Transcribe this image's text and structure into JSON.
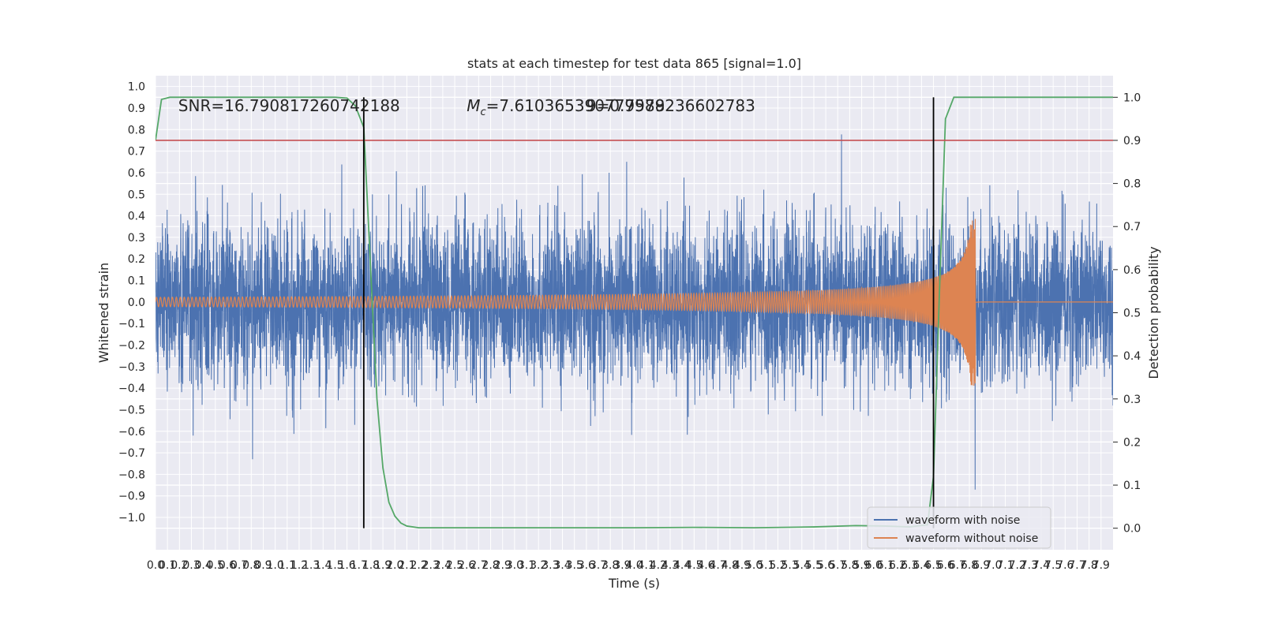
{
  "chart_data": {
    "type": "line",
    "title": "stats at each timestep for test data 865 [signal=1.0]",
    "xlabel": "Time (s)",
    "ylabel": "Whitened strain",
    "ylabel_right": "Detection probability",
    "xlim": [
      0.0,
      8.0
    ],
    "ylim": [
      -1.15,
      1.05
    ],
    "ylim_right": [
      -0.05,
      1.05
    ],
    "x_ticks": [
      "0.0",
      "0.1",
      "0.2",
      "0.3",
      "0.4",
      "0.5",
      "0.6",
      "0.7",
      "0.8",
      "0.9",
      "1.0",
      "1.1",
      "1.2",
      "1.3",
      "1.4",
      "1.5",
      "1.6",
      "1.7",
      "1.8",
      "1.9",
      "2.0",
      "2.1",
      "2.2",
      "2.3",
      "2.4",
      "2.5",
      "2.6",
      "2.7",
      "2.8",
      "2.9",
      "3.0",
      "3.1",
      "3.2",
      "3.3",
      "3.4",
      "3.5",
      "3.6",
      "3.7",
      "3.8",
      "3.9",
      "4.0",
      "4.1",
      "4.2",
      "4.3",
      "4.4",
      "4.5",
      "4.6",
      "4.7",
      "4.8",
      "4.9",
      "5.0",
      "5.1",
      "5.2",
      "5.3",
      "5.4",
      "5.5",
      "5.6",
      "5.7",
      "5.8",
      "5.9",
      "6.0",
      "6.1",
      "6.2",
      "6.3",
      "6.4",
      "6.5",
      "6.6",
      "6.7",
      "6.8",
      "6.9",
      "7.0",
      "7.1",
      "7.2",
      "7.3",
      "7.4",
      "7.5",
      "7.6",
      "7.7",
      "7.8",
      "7.9"
    ],
    "y_ticks": [
      "−1.0",
      "−0.9",
      "−0.8",
      "−0.7",
      "−0.6",
      "−0.5",
      "−0.4",
      "−0.3",
      "−0.2",
      "−0.1",
      "0.0",
      "0.1",
      "0.2",
      "0.3",
      "0.4",
      "0.5",
      "0.6",
      "0.7",
      "0.8",
      "0.9",
      "1.0"
    ],
    "y_ticks_right": [
      "0.0",
      "0.1",
      "0.2",
      "0.3",
      "0.4",
      "0.5",
      "0.6",
      "0.7",
      "0.8",
      "0.9",
      "1.0"
    ],
    "annotations": {
      "snr": "SNR=16.790817260742188",
      "mc_symbol": "M",
      "mc_subscript": "c",
      "mc_value": "=7.610365390777588",
      "overlap": "9=0.9979236602783"
    },
    "threshold": 0.9,
    "vlines_x": [
      1.74,
      6.5
    ],
    "series": [
      {
        "name": "waveform with noise",
        "color": "#4c72b0",
        "kind": "noise",
        "envelope": 0.55,
        "t_end": 8.0
      },
      {
        "name": "waveform without noise",
        "color": "#dd8452",
        "kind": "chirp",
        "t_merger": 6.85,
        "f0": 30,
        "amp0": 0.022,
        "amp_peak": 0.39
      },
      {
        "name": "",
        "color": "#55a868",
        "kind": "probability",
        "x": [
          0.0,
          0.05,
          0.12,
          0.3,
          1.5,
          1.6,
          1.67,
          1.74,
          1.85,
          1.9,
          1.95,
          2.0,
          2.05,
          2.1,
          2.2,
          3.0,
          4.0,
          4.5,
          5.0,
          5.5,
          5.85,
          6.1,
          6.3,
          6.45,
          6.5,
          6.55,
          6.6,
          6.67,
          7.0,
          8.0
        ],
        "y": [
          0.9,
          0.995,
          1.0,
          1.0,
          1.0,
          0.998,
          0.98,
          0.93,
          0.3,
          0.14,
          0.06,
          0.028,
          0.012,
          0.005,
          0.001,
          0.001,
          0.001,
          0.002,
          0.001,
          0.003,
          0.006,
          0.005,
          0.003,
          0.008,
          0.12,
          0.55,
          0.95,
          1.0,
          1.0,
          1.0
        ]
      },
      {
        "name": "",
        "color": "#c44e52",
        "kind": "hline",
        "y_right": 0.9
      }
    ],
    "legend": {
      "position": "lower right"
    },
    "grid": true,
    "background": "#eaeaf2",
    "grid_color": "#ffffff"
  }
}
